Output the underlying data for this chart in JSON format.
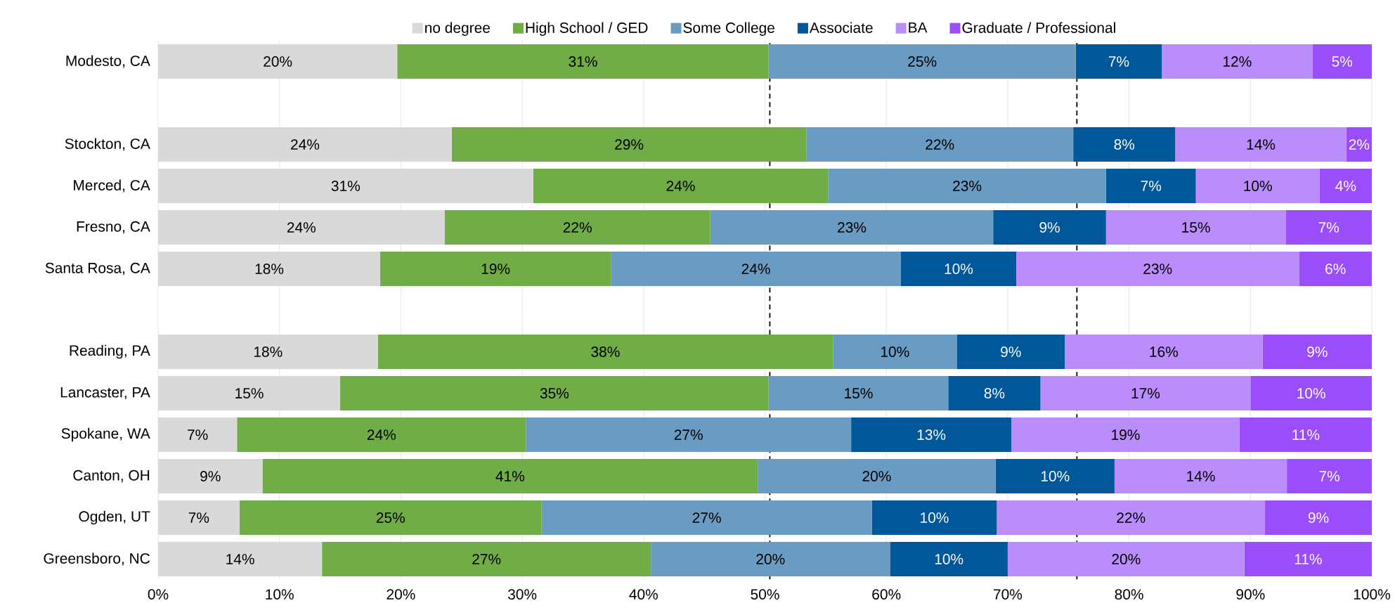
{
  "chart_data": {
    "type": "bar",
    "orientation": "horizontal",
    "stacked": true,
    "categories": [
      "Modesto, CA",
      null,
      "Stockton, CA",
      "Merced, CA",
      "Fresno, CA",
      "Santa Rosa, CA",
      null,
      "Reading, PA",
      "Lancaster, PA",
      "Spokane, WA",
      "Canton, OH",
      "Ogden, UT",
      "Greensboro, NC"
    ],
    "series": [
      {
        "name": "no degree",
        "color": "#d9d9d9",
        "values": [
          19.7,
          null,
          24.2,
          30.9,
          23.6,
          18.3,
          null,
          18.1,
          15.0,
          6.5,
          8.6,
          6.7,
          13.5
        ],
        "value_labels": [
          "20%",
          null,
          "24%",
          "31%",
          "24%",
          "18%",
          null,
          "18%",
          "15%",
          "7%",
          "9%",
          "7%",
          "14%"
        ]
      },
      {
        "name": "High School / GED",
        "color": "#70ad47",
        "values": [
          30.6,
          null,
          29.2,
          24.3,
          21.9,
          19.0,
          null,
          37.5,
          35.3,
          23.8,
          40.8,
          24.9,
          27.1
        ],
        "value_labels": [
          "31%",
          null,
          "29%",
          "24%",
          "22%",
          "19%",
          null,
          "38%",
          "35%",
          "24%",
          "41%",
          "25%",
          "27%"
        ]
      },
      {
        "name": "Some College",
        "color": "#6a9bc3",
        "values": [
          25.3,
          null,
          22.0,
          22.9,
          23.3,
          23.9,
          null,
          10.2,
          14.8,
          26.8,
          19.6,
          27.2,
          19.7
        ],
        "value_labels": [
          "25%",
          null,
          "22%",
          "23%",
          "23%",
          "24%",
          null,
          "10%",
          "15%",
          "27%",
          "20%",
          "27%",
          "20%"
        ]
      },
      {
        "name": "Associate",
        "color": "#00589a",
        "values": [
          7.1,
          null,
          8.4,
          7.4,
          9.3,
          9.5,
          null,
          8.9,
          7.6,
          13.2,
          9.8,
          10.3,
          9.7
        ],
        "value_labels": [
          "7%",
          null,
          "8%",
          "7%",
          "9%",
          "10%",
          null,
          "9%",
          "8%",
          "13%",
          "10%",
          "10%",
          "10%"
        ]
      },
      {
        "name": "BA",
        "color": "#bb8cfb",
        "values": [
          12.4,
          null,
          14.1,
          10.2,
          14.8,
          23.3,
          null,
          16.3,
          17.3,
          18.8,
          14.2,
          22.1,
          19.5
        ],
        "value_labels": [
          "12%",
          null,
          "14%",
          "10%",
          "15%",
          "23%",
          null,
          "16%",
          "17%",
          "19%",
          "14%",
          "22%",
          "20%"
        ]
      },
      {
        "name": "Graduate / Professional",
        "color": "#9a4dfb",
        "values": [
          4.9,
          null,
          2.1,
          4.3,
          7.1,
          6.0,
          null,
          9.0,
          10.0,
          10.9,
          7.0,
          8.8,
          10.5
        ],
        "value_labels": [
          "5%",
          null,
          "2%",
          "4%",
          "7%",
          "6%",
          null,
          "9%",
          "10%",
          "11%",
          "7%",
          "9%",
          "11%"
        ]
      }
    ],
    "xlim": [
      0,
      100
    ],
    "xticks": [
      {
        "value": 0,
        "label": "0%"
      },
      {
        "value": 10,
        "label": "10%"
      },
      {
        "value": 20,
        "label": "20%"
      },
      {
        "value": 30,
        "label": "30%"
      },
      {
        "value": 40,
        "label": "40%"
      },
      {
        "value": 50,
        "label": "50%"
      },
      {
        "value": 60,
        "label": "60%"
      },
      {
        "value": 70,
        "label": "70%"
      },
      {
        "value": 80,
        "label": "80%"
      },
      {
        "value": 90,
        "label": "90%"
      },
      {
        "value": 100,
        "label": "100%"
      }
    ],
    "ref_lines": [
      {
        "axis": "x",
        "value": 50.4,
        "color": "#000000",
        "line_style": "dashed"
      },
      {
        "axis": "x",
        "value": 75.7,
        "color": "#000000",
        "line_style": "dashed"
      }
    ],
    "grid": "x",
    "legend": "top"
  }
}
